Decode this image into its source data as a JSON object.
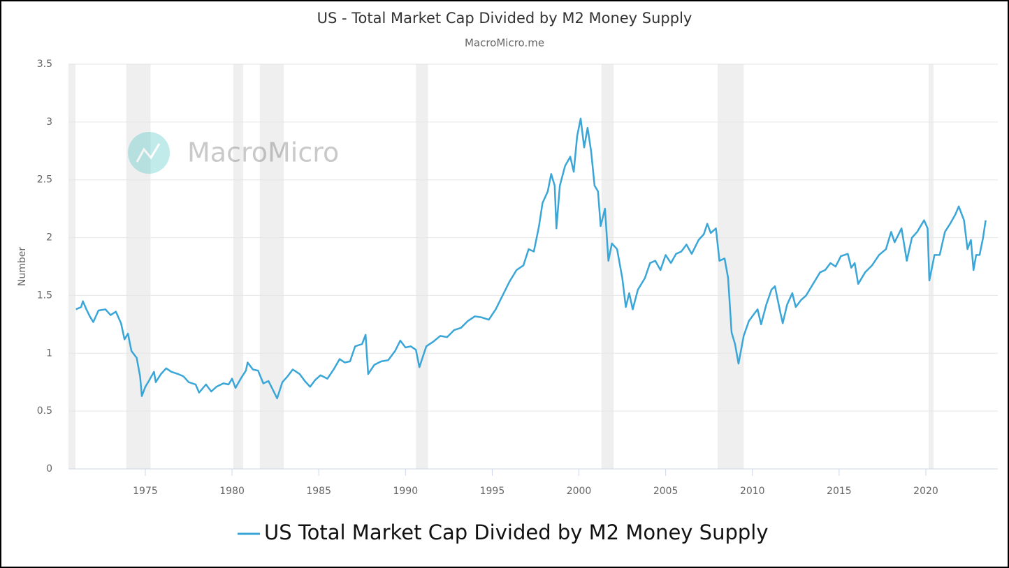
{
  "chart_data": {
    "type": "line",
    "title": "US - Total Market Cap Divided by M2 Money Supply",
    "subtitle": "MacroMicro.me",
    "watermark": "MacroMicro",
    "y_label": "Number",
    "xlim": [
      1970.57,
      2024.15
    ],
    "xticks": [
      1975,
      1980,
      1985,
      1990,
      1995,
      2000,
      2005,
      2010,
      2015,
      2020
    ],
    "ylim": [
      0,
      3.5
    ],
    "yticks": [
      0,
      0.5,
      1,
      1.5,
      2,
      2.5,
      3,
      3.5
    ],
    "grid": true,
    "legend": "bottom",
    "recessions": [
      [
        1970.57,
        1970.97
      ],
      [
        1973.9,
        1975.3
      ],
      [
        1980.07,
        1980.64
      ],
      [
        1981.6,
        1982.98
      ],
      [
        1990.6,
        1991.3
      ],
      [
        2001.3,
        2002.0
      ],
      [
        2008.0,
        2009.5
      ],
      [
        2020.16,
        2020.44
      ]
    ],
    "recession_color": "#efefef",
    "x": [
      1971.0,
      1971.3,
      1971.4,
      1971.6,
      1971.8,
      1972.0,
      1972.3,
      1972.7,
      1973.0,
      1973.3,
      1973.6,
      1973.8,
      1974.0,
      1974.2,
      1974.5,
      1974.7,
      1974.8,
      1975.0,
      1975.2,
      1975.5,
      1975.6,
      1975.9,
      1976.2,
      1976.5,
      1976.9,
      1977.2,
      1977.5,
      1977.9,
      1978.1,
      1978.5,
      1978.8,
      1979.1,
      1979.5,
      1979.8,
      1980.0,
      1980.2,
      1980.5,
      1980.8,
      1980.9,
      1981.2,
      1981.5,
      1981.8,
      1982.1,
      1982.4,
      1982.6,
      1982.9,
      1983.2,
      1983.5,
      1983.9,
      1984.2,
      1984.5,
      1984.8,
      1985.1,
      1985.5,
      1985.9,
      1986.2,
      1986.5,
      1986.8,
      1987.1,
      1987.5,
      1987.7,
      1987.85,
      1988.2,
      1988.6,
      1989.0,
      1989.4,
      1989.7,
      1990.0,
      1990.3,
      1990.6,
      1990.8,
      1991.2,
      1991.6,
      1992.0,
      1992.4,
      1992.8,
      1993.2,
      1993.6,
      1994.0,
      1994.4,
      1994.8,
      1995.2,
      1995.6,
      1996.0,
      1996.4,
      1996.8,
      1997.1,
      1997.4,
      1997.7,
      1997.9,
      1998.2,
      1998.4,
      1998.6,
      1998.7,
      1998.9,
      1999.2,
      1999.5,
      1999.7,
      1999.9,
      2000.1,
      2000.3,
      2000.5,
      2000.7,
      2000.9,
      2001.1,
      2001.25,
      2001.5,
      2001.7,
      2001.9,
      2002.2,
      2002.5,
      2002.7,
      2002.9,
      2003.1,
      2003.4,
      2003.8,
      2004.1,
      2004.4,
      2004.7,
      2005.0,
      2005.3,
      2005.6,
      2005.9,
      2006.2,
      2006.5,
      2006.9,
      2007.2,
      2007.4,
      2007.6,
      2007.9,
      2008.1,
      2008.4,
      2008.6,
      2008.8,
      2009.0,
      2009.2,
      2009.5,
      2009.8,
      2010.1,
      2010.3,
      2010.5,
      2010.8,
      2011.1,
      2011.3,
      2011.6,
      2011.75,
      2012.0,
      2012.3,
      2012.5,
      2012.8,
      2013.1,
      2013.5,
      2013.9,
      2014.2,
      2014.5,
      2014.8,
      2015.1,
      2015.5,
      2015.7,
      2015.9,
      2016.1,
      2016.5,
      2016.9,
      2017.3,
      2017.7,
      2018.0,
      2018.2,
      2018.6,
      2018.9,
      2019.2,
      2019.5,
      2019.9,
      2020.1,
      2020.2,
      2020.5,
      2020.8,
      2021.1,
      2021.4,
      2021.7,
      2021.9,
      2022.2,
      2022.4,
      2022.6,
      2022.75,
      2022.9,
      2023.1,
      2023.3,
      2023.45
    ],
    "series": [
      {
        "name": "US Total Market Cap Divided by M2 Money Supply",
        "color": "#3aa6d8",
        "values": [
          1.38,
          1.4,
          1.45,
          1.38,
          1.32,
          1.27,
          1.37,
          1.38,
          1.33,
          1.36,
          1.26,
          1.12,
          1.17,
          1.02,
          0.96,
          0.8,
          0.63,
          0.71,
          0.76,
          0.84,
          0.75,
          0.82,
          0.87,
          0.84,
          0.82,
          0.8,
          0.75,
          0.73,
          0.66,
          0.73,
          0.67,
          0.71,
          0.74,
          0.73,
          0.78,
          0.7,
          0.78,
          0.85,
          0.92,
          0.86,
          0.85,
          0.74,
          0.76,
          0.67,
          0.61,
          0.75,
          0.8,
          0.86,
          0.82,
          0.76,
          0.71,
          0.77,
          0.81,
          0.78,
          0.87,
          0.95,
          0.92,
          0.93,
          1.06,
          1.08,
          1.16,
          0.82,
          0.9,
          0.93,
          0.94,
          1.02,
          1.11,
          1.05,
          1.06,
          1.03,
          0.88,
          1.06,
          1.1,
          1.15,
          1.14,
          1.2,
          1.22,
          1.28,
          1.32,
          1.31,
          1.29,
          1.38,
          1.5,
          1.62,
          1.72,
          1.76,
          1.9,
          1.88,
          2.1,
          2.3,
          2.4,
          2.55,
          2.45,
          2.08,
          2.45,
          2.62,
          2.7,
          2.57,
          2.88,
          3.03,
          2.78,
          2.95,
          2.75,
          2.45,
          2.4,
          2.1,
          2.25,
          1.8,
          1.95,
          1.9,
          1.65,
          1.4,
          1.52,
          1.38,
          1.55,
          1.65,
          1.78,
          1.8,
          1.72,
          1.85,
          1.78,
          1.86,
          1.88,
          1.94,
          1.86,
          1.98,
          2.03,
          2.12,
          2.04,
          2.08,
          1.8,
          1.82,
          1.65,
          1.18,
          1.08,
          0.91,
          1.15,
          1.28,
          1.34,
          1.38,
          1.25,
          1.42,
          1.55,
          1.58,
          1.36,
          1.26,
          1.42,
          1.52,
          1.4,
          1.46,
          1.5,
          1.6,
          1.7,
          1.72,
          1.78,
          1.75,
          1.84,
          1.86,
          1.74,
          1.78,
          1.6,
          1.7,
          1.76,
          1.85,
          1.9,
          2.05,
          1.96,
          2.08,
          1.8,
          2.0,
          2.05,
          2.15,
          2.08,
          1.63,
          1.85,
          1.85,
          2.05,
          2.12,
          2.2,
          2.27,
          2.15,
          1.9,
          1.98,
          1.72,
          1.85,
          1.85,
          2.0,
          2.15
        ]
      }
    ]
  }
}
